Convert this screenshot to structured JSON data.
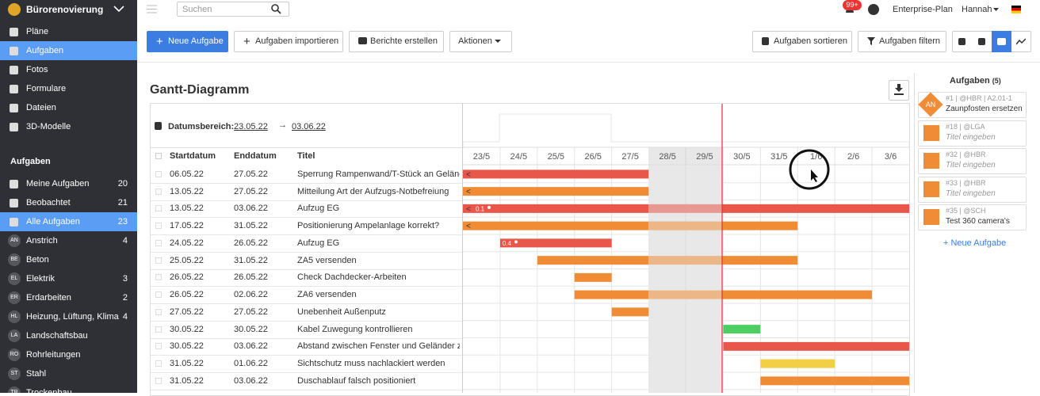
{
  "sidebar": {
    "project": "Bürorenovierung",
    "nav": [
      "Pläne",
      "Aufgaben",
      "Fotos",
      "Formulare",
      "Dateien",
      "3D-Modelle"
    ],
    "section_title": "Aufgaben",
    "filters": [
      {
        "label": "Meine Aufgaben",
        "count": 20
      },
      {
        "label": "Beobachtet",
        "count": 21
      },
      {
        "label": "Alle Aufgaben",
        "count": 23
      }
    ],
    "groups": [
      {
        "abbr": "AN",
        "label": "Anstrich",
        "count": 4
      },
      {
        "abbr": "BE",
        "label": "Beton"
      },
      {
        "abbr": "EL",
        "label": "Elektrik",
        "count": 3
      },
      {
        "abbr": "ER",
        "label": "Erdarbeiten",
        "count": 2
      },
      {
        "abbr": "HL",
        "label": "Heizung, Lüftung, Klima",
        "count": 4
      },
      {
        "abbr": "LA",
        "label": "Landschaftsbau"
      },
      {
        "abbr": "RO",
        "label": "Rohrleitungen"
      },
      {
        "abbr": "ST",
        "label": "Stahl"
      },
      {
        "abbr": "TR",
        "label": "Trockenbau"
      }
    ]
  },
  "topbar": {
    "search_placeholder": "Suchen",
    "notification_badge": "99+",
    "plan": "Enterprise-Plan",
    "user": "Hannah"
  },
  "toolbar": {
    "new_task": "Neue Aufgabe",
    "import": "Aufgaben importieren",
    "reports": "Berichte erstellen",
    "actions": "Aktionen",
    "sort": "Aufgaben sortieren",
    "filter": "Aufgaben filtern"
  },
  "gantt": {
    "title": "Gantt-Diagramm",
    "date_range_label": "Datumsbereich:",
    "date_from": "23.05.22",
    "date_to": "03.06.22",
    "columns": [
      "Startdatum",
      "Enddatum",
      "Titel"
    ],
    "days": [
      "23/5",
      "24/5",
      "25/5",
      "26/5",
      "27/5",
      "28/5",
      "29/5",
      "30/5",
      "31/5",
      "1/6",
      "2/6",
      "3/6"
    ],
    "rows": [
      {
        "start": "06.05.22",
        "end": "27.05.22",
        "title": "Sperrung Rampenwand/T-Stück an Geländ…",
        "color": "#e9574a"
      },
      {
        "start": "13.05.22",
        "end": "27.05.22",
        "title": "Mitteilung Art der Aufzugs-Notbefreiung",
        "color": "#f08c35"
      },
      {
        "start": "13.05.22",
        "end": "03.06.22",
        "title": "Aufzug EG",
        "color": "#e9574a",
        "progress": 0.1
      },
      {
        "start": "17.05.22",
        "end": "31.05.22",
        "title": "Positionierung Ampelanlage korrekt?",
        "color": "#f08c35"
      },
      {
        "start": "24.05.22",
        "end": "26.05.22",
        "title": "Aufzug EG",
        "color": "#e9574a",
        "progress": 0.4
      },
      {
        "start": "25.05.22",
        "end": "31.05.22",
        "title": "ZA5 versenden",
        "color": "#f08c35"
      },
      {
        "start": "26.05.22",
        "end": "26.05.22",
        "title": "Check Dachdecker-Arbeiten",
        "color": "#f08c35"
      },
      {
        "start": "26.05.22",
        "end": "02.06.22",
        "title": "ZA6 versenden",
        "color": "#f08c35"
      },
      {
        "start": "27.05.22",
        "end": "27.05.22",
        "title": "Unebenheit Außenputz",
        "color": "#f08c35"
      },
      {
        "start": "30.05.22",
        "end": "30.05.22",
        "title": "Kabel Zuwegung kontrollieren",
        "color": "#4cce62"
      },
      {
        "start": "30.05.22",
        "end": "03.06.22",
        "title": "Abstand zwischen Fenster und Geländer zu …",
        "color": "#e9574a"
      },
      {
        "start": "31.05.22",
        "end": "01.06.22",
        "title": "Sichtschutz muss nachlackiert werden",
        "color": "#f2cf45"
      },
      {
        "start": "31.05.22",
        "end": "03.06.22",
        "title": "Duschablauf falsch positioniert",
        "color": "#f08c35"
      }
    ]
  },
  "panel": {
    "title": "Aufgaben",
    "count": "(5)",
    "cards": [
      {
        "meta": "#1 | @HBR | A2.01-1",
        "title": "Zaunpfosten ersetzen",
        "badge": "AN"
      },
      {
        "meta": "#18 | @LGA",
        "title": "Titel eingeben"
      },
      {
        "meta": "#32 | @HBR",
        "title": "Titel eingeben"
      },
      {
        "meta": "#33 | @HBR",
        "title": "Titel eingeben"
      },
      {
        "meta": "#35 | @SCH",
        "title": "Test 360 camera's"
      }
    ],
    "add": "+ Neue Aufgabe"
  }
}
